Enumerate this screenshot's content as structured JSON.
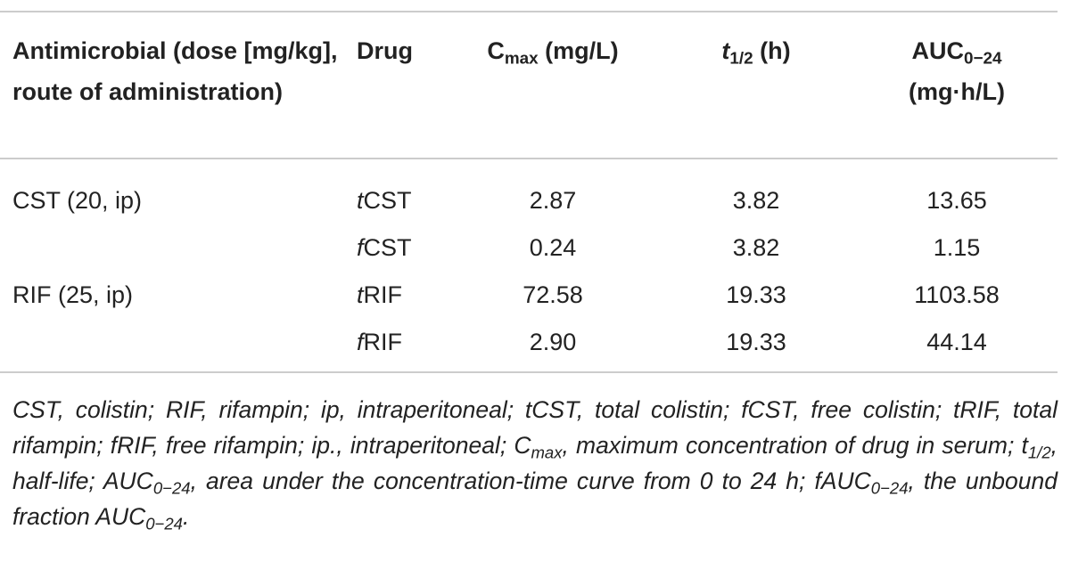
{
  "table": {
    "header": [
      [
        "Antimicrobial (dose [mg/kg], route of administration)"
      ],
      [
        "Drug"
      ],
      [
        "C",
        "max",
        " (mg/L)"
      ],
      [
        "t",
        "1/2",
        " (h)"
      ],
      [
        "AUC",
        "0−24",
        " (mg·h/L)"
      ]
    ],
    "rows": [
      {
        "antimicrobial": "CST (20, ip)",
        "drug": [
          "t",
          "CST"
        ],
        "cmax": "2.87",
        "half_life": "3.82",
        "auc": "13.65"
      },
      {
        "drug": [
          "f",
          "CST"
        ],
        "cmax": "0.24",
        "half_life": "3.82",
        "auc": "1.15"
      },
      {
        "antimicrobial": "RIF (25, ip)",
        "drug": [
          "t",
          "RIF"
        ],
        "cmax": "72.58",
        "half_life": "19.33",
        "auc": "1103.58"
      },
      {
        "drug": [
          "f",
          "RIF"
        ],
        "cmax": "2.90",
        "half_life": "19.33",
        "auc": "44.14"
      }
    ],
    "footnote": [
      "CST, colistin; RIF, rifampin; ip, intraperitoneal; tCST, total colistin; fCST, free colistin; tRIF, total rifampin; fRIF, free rifampin; ip., intraperitoneal; C",
      "max",
      ", maximum concentration of drug in serum; t",
      "1/2",
      ", half-life; AUC",
      "0−24",
      ", area under the concentration-time curve from 0 to 24 h; fAUC",
      "0−24",
      ", the unbound fraction AUC",
      "0−24",
      "."
    ]
  }
}
